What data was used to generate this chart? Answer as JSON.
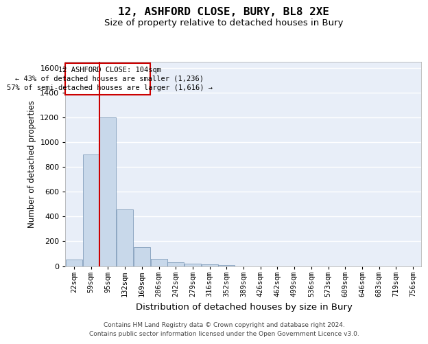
{
  "title_line1": "12, ASHFORD CLOSE, BURY, BL8 2XE",
  "title_line2": "Size of property relative to detached houses in Bury",
  "xlabel": "Distribution of detached houses by size in Bury",
  "ylabel": "Number of detached properties",
  "footnote1": "Contains HM Land Registry data © Crown copyright and database right 2024.",
  "footnote2": "Contains public sector information licensed under the Open Government Licence v3.0.",
  "annotation_line1": "12 ASHFORD CLOSE: 104sqm",
  "annotation_line2": "← 43% of detached houses are smaller (1,236)",
  "annotation_line3": "57% of semi-detached houses are larger (1,616) →",
  "bin_starts": [
    22,
    59,
    95,
    132,
    169,
    206,
    242,
    279,
    316,
    352,
    389,
    426,
    462,
    499,
    536,
    573,
    609,
    646,
    683,
    719,
    756
  ],
  "categories": [
    "22sqm",
    "59sqm",
    "95sqm",
    "132sqm",
    "169sqm",
    "206sqm",
    "242sqm",
    "279sqm",
    "316sqm",
    "352sqm",
    "389sqm",
    "426sqm",
    "462sqm",
    "499sqm",
    "536sqm",
    "573sqm",
    "609sqm",
    "646sqm",
    "683sqm",
    "719sqm",
    "756sqm"
  ],
  "values": [
    50,
    900,
    1200,
    460,
    150,
    60,
    30,
    20,
    15,
    10,
    0,
    0,
    0,
    0,
    0,
    0,
    0,
    0,
    0,
    0,
    0
  ],
  "bar_color": "#c8d8ea",
  "bar_edge_color": "#7090b0",
  "vline_color": "#cc0000",
  "ylim_max": 1650,
  "yticks": [
    0,
    200,
    400,
    600,
    800,
    1000,
    1200,
    1400,
    1600
  ],
  "bg_color": "#e8eef8",
  "grid_color": "#d0d8e8",
  "annotation_box_edgecolor": "#cc0000",
  "annotation_box_facecolor": "#ffffff"
}
